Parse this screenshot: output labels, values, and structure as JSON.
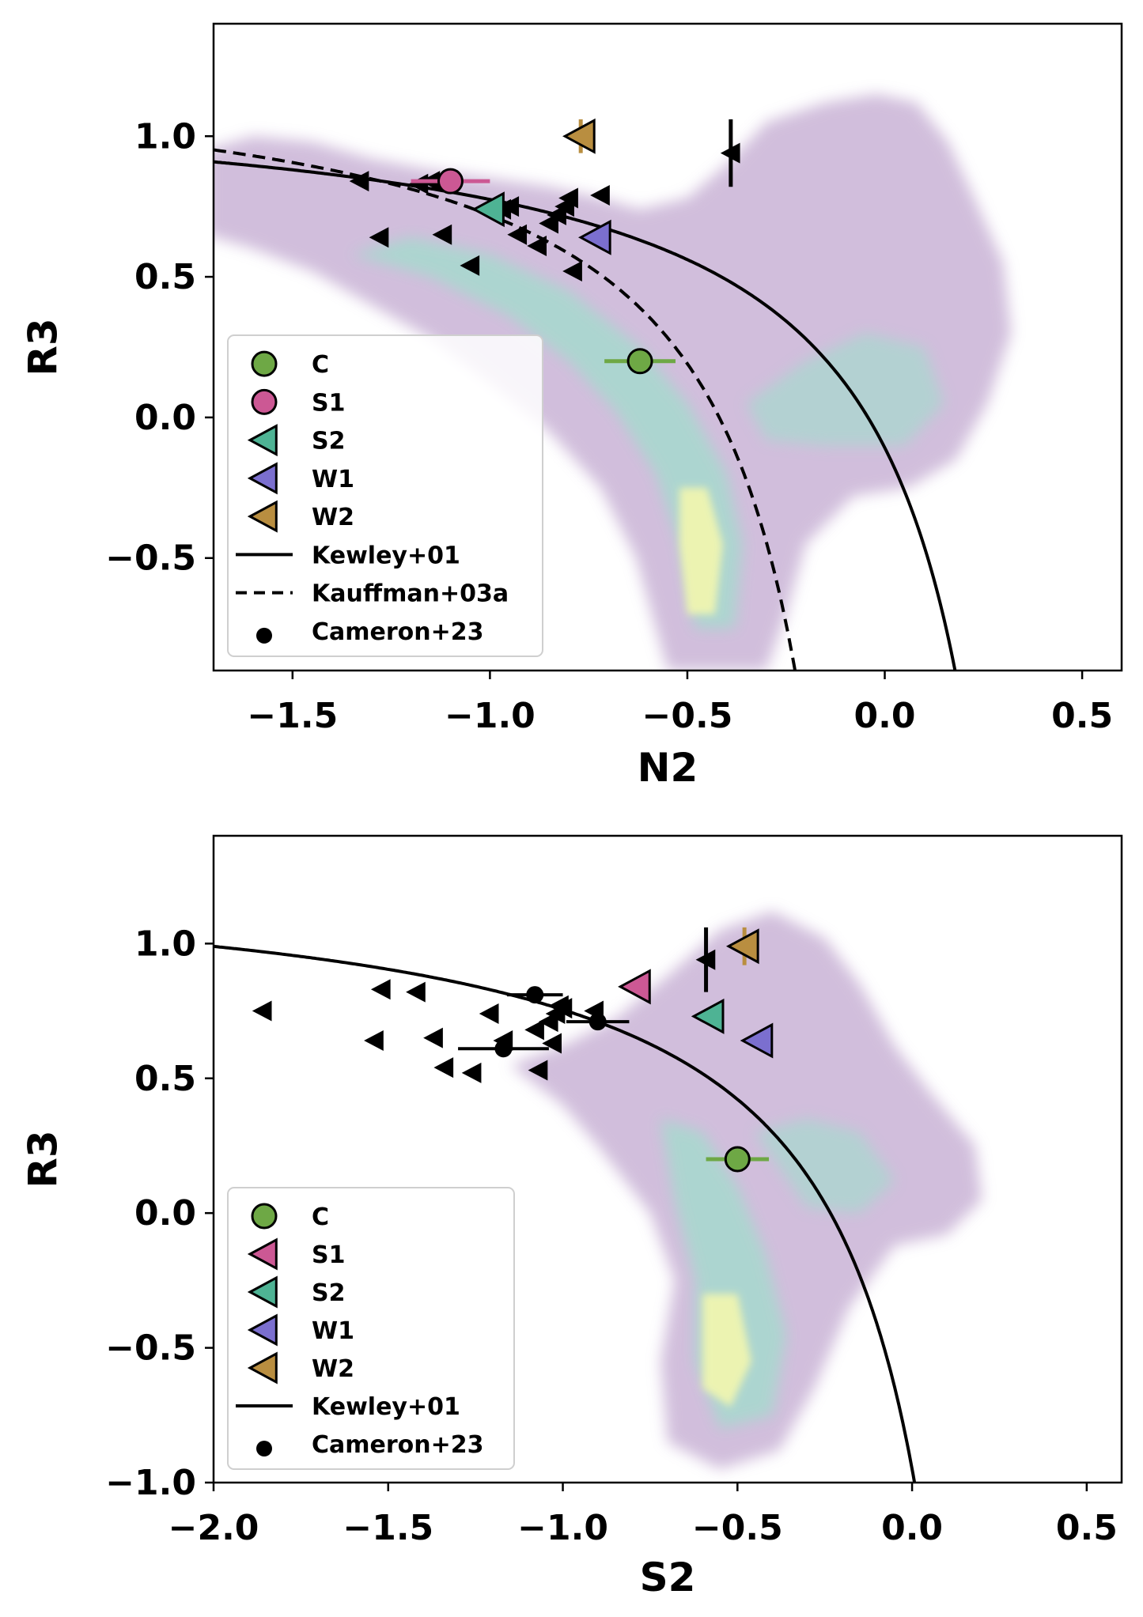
{
  "chart_data": [
    {
      "type": "scatter",
      "xlabel": "N2",
      "ylabel": "R3",
      "xlim": [
        -1.7,
        0.6
      ],
      "ylim": [
        -0.9,
        1.4
      ],
      "xticks": [
        {
          "v": -1.5,
          "label": "−1.5"
        },
        {
          "v": -1.0,
          "label": "−1.0"
        },
        {
          "v": -0.5,
          "label": "−0.5"
        },
        {
          "v": 0.0,
          "label": "0.0"
        },
        {
          "v": 0.5,
          "label": "0.5"
        }
      ],
      "yticks": [
        {
          "v": -0.5,
          "label": "−0.5"
        },
        {
          "v": 0.0,
          "label": "0.0"
        },
        {
          "v": 0.5,
          "label": "0.5"
        },
        {
          "v": 1.0,
          "label": "1.0"
        }
      ],
      "legend_position": "lower-left",
      "legend": [
        {
          "label": "C",
          "marker": "circle",
          "color": "#6ea845"
        },
        {
          "label": "S1",
          "marker": "circle",
          "color": "#cc5894"
        },
        {
          "label": "S2",
          "marker": "triangle-left",
          "color": "#4eb394"
        },
        {
          "label": "W1",
          "marker": "triangle-left",
          "color": "#7b6fcf"
        },
        {
          "label": "W2",
          "marker": "triangle-left",
          "color": "#b98e40"
        },
        {
          "label": "Kewley+01",
          "marker": "solid-line",
          "color": "#000000"
        },
        {
          "label": "Kauffman+03a",
          "marker": "dashed-line",
          "color": "#000000"
        },
        {
          "label": "Cameron+23",
          "marker": "dot",
          "color": "#000000"
        }
      ],
      "curves": [
        {
          "name": "Kewley+01",
          "style": "solid",
          "formula": "0.61/(x-0.47)+1.19"
        },
        {
          "name": "Kauffman+03a",
          "style": "dashed",
          "formula": "0.61/(x-0.05)+1.30"
        }
      ],
      "density_cloud": {
        "description": "background density of local galaxies",
        "colors": [
          "#c9b3d6",
          "#a9d8cf",
          "#f0f5b0"
        ]
      },
      "series": [
        {
          "name": "C",
          "marker": "circle",
          "color": "#6ea845",
          "x": -0.62,
          "y": 0.2,
          "xerr": 0.09,
          "yerr": 0.04
        },
        {
          "name": "S1",
          "marker": "circle",
          "color": "#cc5894",
          "x": -1.1,
          "y": 0.84,
          "xerr": 0.1,
          "yerr": 0.0
        },
        {
          "name": "S2",
          "marker": "triangle-left",
          "color": "#4eb394",
          "x": -1.0,
          "y": 0.74
        },
        {
          "name": "W1",
          "marker": "triangle-left",
          "color": "#7b6fcf",
          "x": -0.73,
          "y": 0.64
        },
        {
          "name": "W2",
          "marker": "triangle-left",
          "color": "#b98e40",
          "x": -0.77,
          "y": 1.0,
          "yerr": 0.06
        }
      ],
      "cameron_limits": [
        {
          "x": -1.33,
          "y": 0.84
        },
        {
          "x": -1.15,
          "y": 0.84
        },
        {
          "x": -1.18,
          "y": 0.83
        },
        {
          "x": -1.28,
          "y": 0.64
        },
        {
          "x": -1.12,
          "y": 0.65
        },
        {
          "x": -1.05,
          "y": 0.54
        },
        {
          "x": -0.95,
          "y": 0.75
        },
        {
          "x": -0.97,
          "y": 0.74
        },
        {
          "x": -0.93,
          "y": 0.65
        },
        {
          "x": -0.88,
          "y": 0.61
        },
        {
          "x": -0.85,
          "y": 0.69
        },
        {
          "x": -0.83,
          "y": 0.72
        },
        {
          "x": -0.81,
          "y": 0.75
        },
        {
          "x": -0.8,
          "y": 0.78
        },
        {
          "x": -0.72,
          "y": 0.79
        },
        {
          "x": -0.79,
          "y": 0.52
        },
        {
          "x": -0.39,
          "y": 0.94,
          "yerr": 0.12
        }
      ],
      "cameron_points": []
    },
    {
      "type": "scatter",
      "xlabel": "S2",
      "ylabel": "R3",
      "xlim": [
        -2.0,
        0.6
      ],
      "ylim": [
        -1.0,
        1.4
      ],
      "xticks": [
        {
          "v": -2.0,
          "label": "−2.0"
        },
        {
          "v": -1.5,
          "label": "−1.5"
        },
        {
          "v": -1.0,
          "label": "−1.0"
        },
        {
          "v": -0.5,
          "label": "−0.5"
        },
        {
          "v": 0.0,
          "label": "0.0"
        },
        {
          "v": 0.5,
          "label": "0.5"
        }
      ],
      "yticks": [
        {
          "v": -1.0,
          "label": "−1.0"
        },
        {
          "v": -0.5,
          "label": "−0.5"
        },
        {
          "v": 0.0,
          "label": "0.0"
        },
        {
          "v": 0.5,
          "label": "0.5"
        },
        {
          "v": 1.0,
          "label": "1.0"
        }
      ],
      "legend_position": "lower-left",
      "legend": [
        {
          "label": "C",
          "marker": "circle",
          "color": "#6ea845"
        },
        {
          "label": "S1",
          "marker": "triangle-left",
          "color": "#cc5894"
        },
        {
          "label": "S2",
          "marker": "triangle-left",
          "color": "#4eb394"
        },
        {
          "label": "W1",
          "marker": "triangle-left",
          "color": "#7b6fcf"
        },
        {
          "label": "W2",
          "marker": "triangle-left",
          "color": "#b98e40"
        },
        {
          "label": "Kewley+01",
          "marker": "solid-line",
          "color": "#000000"
        },
        {
          "label": "Cameron+23",
          "marker": "dot",
          "color": "#000000"
        }
      ],
      "curves": [
        {
          "name": "Kewley+01",
          "style": "solid",
          "formula": "0.72/(x-0.32)+1.30"
        }
      ],
      "density_cloud": {
        "description": "background density of local galaxies",
        "colors": [
          "#c9b3d6",
          "#a9d8cf",
          "#f0f5b0"
        ]
      },
      "series": [
        {
          "name": "C",
          "marker": "circle",
          "color": "#6ea845",
          "x": -0.5,
          "y": 0.2,
          "xerr": 0.09,
          "yerr": 0.04
        },
        {
          "name": "S1",
          "marker": "triangle-left",
          "color": "#cc5894",
          "x": -0.79,
          "y": 0.84
        },
        {
          "name": "S2",
          "marker": "triangle-left",
          "color": "#4eb394",
          "x": -0.58,
          "y": 0.73
        },
        {
          "name": "W1",
          "marker": "triangle-left",
          "color": "#7b6fcf",
          "x": -0.44,
          "y": 0.64
        },
        {
          "name": "W2",
          "marker": "triangle-left",
          "color": "#b98e40",
          "x": -0.48,
          "y": 0.99,
          "yerr": 0.07
        }
      ],
      "cameron_limits": [
        {
          "x": -1.86,
          "y": 0.75
        },
        {
          "x": -1.52,
          "y": 0.83
        },
        {
          "x": -1.42,
          "y": 0.82
        },
        {
          "x": -1.54,
          "y": 0.64
        },
        {
          "x": -1.37,
          "y": 0.65
        },
        {
          "x": -1.34,
          "y": 0.54
        },
        {
          "x": -1.26,
          "y": 0.52
        },
        {
          "x": -1.21,
          "y": 0.74
        },
        {
          "x": -1.17,
          "y": 0.64
        },
        {
          "x": -1.08,
          "y": 0.68
        },
        {
          "x": -1.07,
          "y": 0.53
        },
        {
          "x": -1.03,
          "y": 0.63
        },
        {
          "x": -1.04,
          "y": 0.71
        },
        {
          "x": -1.02,
          "y": 0.74
        },
        {
          "x": -1.01,
          "y": 0.77
        },
        {
          "x": -1.0,
          "y": 0.76
        },
        {
          "x": -0.91,
          "y": 0.75
        },
        {
          "x": -0.59,
          "y": 0.94,
          "yerr": 0.12
        }
      ],
      "cameron_points": [
        {
          "x": -1.08,
          "y": 0.81,
          "xerr": 0.08
        },
        {
          "x": -0.9,
          "y": 0.71,
          "xerr": 0.09
        },
        {
          "x": -1.17,
          "y": 0.61,
          "xerr": 0.13
        }
      ]
    }
  ]
}
